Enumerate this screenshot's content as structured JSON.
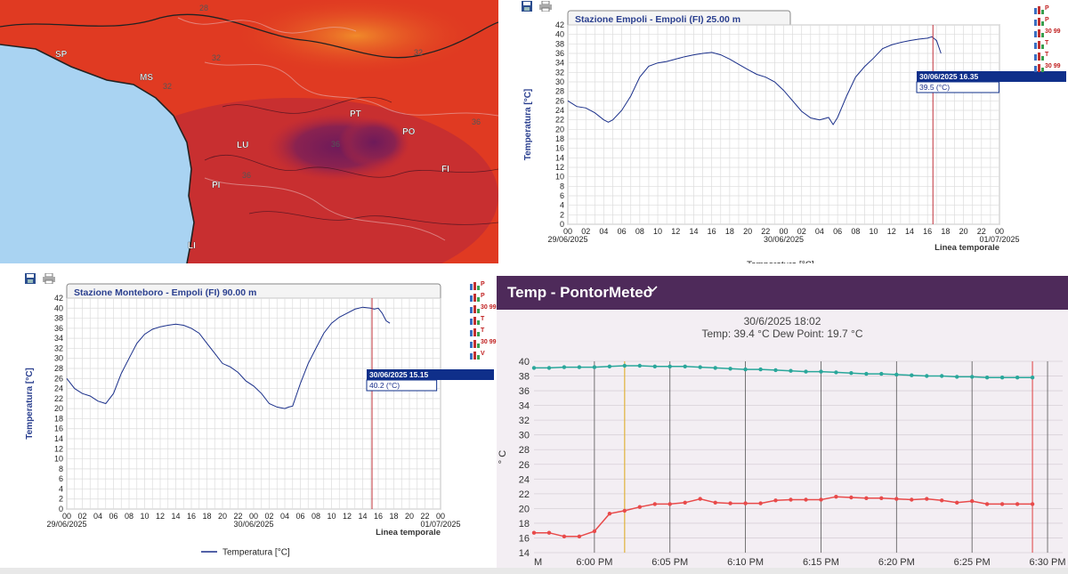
{
  "map": {
    "places": [
      "SP",
      "MS",
      "LU",
      "PT",
      "PO",
      "FI",
      "PI",
      "LI"
    ],
    "isotherm_labels": [
      "28",
      "32",
      "32",
      "32",
      "36",
      "36",
      "36"
    ],
    "colors": {
      "sea": "#a9d3f2",
      "hot": "#e03a22",
      "hotter": "#b8283a",
      "hottest": "#7a1f55",
      "warm": "#ee5a20"
    }
  },
  "chart1": {
    "title": "Stazione Empoli - Empoli (FI) 25.00 m",
    "ylabel": "Temperatura [°C]",
    "x_axis_title": "Linea temporale",
    "x_ticks": [
      "00",
      "02",
      "04",
      "06",
      "08",
      "10",
      "12",
      "14",
      "16",
      "18",
      "20",
      "22",
      "00",
      "02",
      "04",
      "06",
      "08",
      "10",
      "12",
      "14",
      "16",
      "18",
      "20",
      "22",
      "00"
    ],
    "date_labels": [
      "29/06/2025",
      "30/06/2025",
      "01/07/2025"
    ],
    "legend": "Temperatura [°C]",
    "tooltip_time": "30/06/2025 16.35",
    "tooltip_value": "39.5 (°C)",
    "side_badges": [
      "P",
      "P",
      "30 99",
      "T",
      "T",
      "30 99"
    ]
  },
  "chart2": {
    "title": "Stazione Monteboro - Empoli (FI) 90.00 m",
    "ylabel": "Temperatura [°C]",
    "x_axis_title": "Linea temporale",
    "x_ticks": [
      "00",
      "02",
      "04",
      "06",
      "08",
      "10",
      "12",
      "14",
      "16",
      "18",
      "20",
      "22",
      "00",
      "02",
      "04",
      "06",
      "08",
      "10",
      "12",
      "14",
      "16",
      "18",
      "20",
      "22",
      "00"
    ],
    "date_labels": [
      "29/06/2025",
      "30/06/2025",
      "01/07/2025"
    ],
    "legend": "Temperatura [°C]",
    "tooltip_time": "30/06/2025 15.15",
    "tooltip_value": "40.2 (°C)",
    "side_badges": [
      "P",
      "P",
      "30 99",
      "T",
      "T",
      "30 99",
      "V"
    ]
  },
  "pontor": {
    "title": "Temp - PontorMeteo",
    "timestamp": "30/6/2025 18:02",
    "readout": "Temp: 39.4 °C  Dew Point: 19.7 °C",
    "ylabel": "° C",
    "x_ticks": [
      "M",
      "6:00 PM",
      "6:05 PM",
      "6:10 PM",
      "6:15 PM",
      "6:20 PM",
      "6:25 PM",
      "6:30 PM"
    ],
    "y_ticks": [
      "14",
      "16",
      "18",
      "20",
      "22",
      "24",
      "26",
      "28",
      "30",
      "32",
      "34",
      "36",
      "38",
      "40"
    ]
  },
  "chart_data": [
    {
      "type": "line",
      "title": "Stazione Empoli - Empoli (FI) 25.00 m",
      "xlabel": "Linea temporale",
      "ylabel": "Temperatura [°C]",
      "ylim": [
        0,
        42
      ],
      "xlim_hours": [
        0,
        48
      ],
      "x_start": "29/06/2025 00:00",
      "series": [
        {
          "name": "Temperatura [°C]",
          "x_hours": [
            0,
            1,
            2,
            3,
            4,
            4.5,
            5,
            6,
            7,
            8,
            9,
            10,
            11,
            12,
            13,
            14,
            15,
            16,
            17,
            18,
            19,
            20,
            21,
            22,
            23,
            24,
            25,
            26,
            27,
            28,
            29,
            29.5,
            30,
            31,
            32,
            33,
            34,
            35,
            36,
            37,
            38,
            39,
            40,
            40.5,
            41,
            41.5
          ],
          "values": [
            26,
            24.8,
            24.5,
            23.5,
            22,
            21.5,
            22,
            24,
            27,
            31,
            33.3,
            34,
            34.3,
            34.8,
            35.3,
            35.7,
            36,
            36.2,
            35.7,
            34.8,
            33.7,
            32.6,
            31.6,
            31,
            30,
            28.2,
            26,
            23.8,
            22.4,
            22,
            22.5,
            21,
            22.5,
            27,
            31,
            33.2,
            35,
            37,
            37.8,
            38.3,
            38.7,
            39,
            39.2,
            39.5,
            38.7,
            36
          ]
        }
      ],
      "marker_hours": 40.6,
      "tooltip": {
        "time": "30/06/2025 16.35",
        "value": "39.5 (°C)"
      },
      "grid": true,
      "legend_position": "bottom"
    },
    {
      "type": "line",
      "title": "Stazione Monteboro - Empoli (FI) 90.00 m",
      "xlabel": "Linea temporale",
      "ylabel": "Temperatura [°C]",
      "ylim": [
        0,
        42
      ],
      "xlim_hours": [
        0,
        48
      ],
      "x_start": "29/06/2025 00:00",
      "series": [
        {
          "name": "Temperatura [°C]",
          "x_hours": [
            0,
            1,
            2,
            3,
            4,
            5,
            6,
            7,
            8,
            9,
            10,
            11,
            12,
            13,
            14,
            15,
            16,
            17,
            18,
            19,
            20,
            21,
            22,
            23,
            24,
            25,
            26,
            27,
            28,
            28.5,
            29,
            30,
            31,
            32,
            33,
            34,
            35,
            36,
            37,
            38,
            39,
            39.5,
            40,
            40.5,
            41,
            41.5
          ],
          "values": [
            26,
            24,
            23,
            22.5,
            21.5,
            21,
            23,
            27,
            30,
            33,
            34.8,
            35.8,
            36.3,
            36.6,
            36.8,
            36.6,
            36,
            35,
            33,
            31,
            29,
            28.3,
            27.2,
            25.5,
            24.5,
            23,
            21,
            20.3,
            20,
            20.3,
            20.5,
            25,
            29,
            32,
            35,
            37,
            38.2,
            39,
            39.8,
            40.2,
            40,
            39.8,
            40,
            39,
            37.5,
            37
          ]
        }
      ],
      "marker_hours": 39.2,
      "tooltip": {
        "time": "30/06/2025 15.15",
        "value": "40.2 (°C)"
      },
      "grid": true,
      "legend_position": "bottom"
    },
    {
      "type": "line",
      "title": "Temp - PontorMeteo",
      "ylabel": "° C",
      "ylim": [
        14,
        40
      ],
      "x_ticks": [
        "M",
        "6:00 PM",
        "6:05 PM",
        "6:10 PM",
        "6:15 PM",
        "6:20 PM",
        "6:25 PM",
        "6:30 PM"
      ],
      "x_minutes_range": [
        -4,
        31
      ],
      "series": [
        {
          "name": "Temp",
          "x_minutes": [
            -4,
            -3,
            -2,
            -1,
            0,
            1,
            2,
            3,
            4,
            5,
            6,
            7,
            8,
            9,
            10,
            11,
            12,
            13,
            14,
            15,
            16,
            17,
            18,
            19,
            20,
            21,
            22,
            23,
            24,
            25,
            26,
            27,
            28,
            29
          ],
          "values": [
            39.1,
            39.1,
            39.2,
            39.2,
            39.2,
            39.3,
            39.4,
            39.4,
            39.3,
            39.3,
            39.3,
            39.2,
            39.1,
            39.0,
            38.9,
            38.9,
            38.8,
            38.7,
            38.6,
            38.6,
            38.5,
            38.4,
            38.3,
            38.3,
            38.2,
            38.1,
            38.0,
            38.0,
            37.9,
            37.9,
            37.8,
            37.8,
            37.8,
            37.8
          ],
          "color": "#2aa79b"
        },
        {
          "name": "Dew Point",
          "x_minutes": [
            -4,
            -3,
            -2,
            -1,
            0,
            1,
            2,
            3,
            4,
            5,
            6,
            7,
            8,
            9,
            10,
            11,
            12,
            13,
            14,
            15,
            16,
            17,
            18,
            19,
            20,
            21,
            22,
            23,
            24,
            25,
            26,
            27,
            28,
            29
          ],
          "values": [
            16.7,
            16.7,
            16.2,
            16.2,
            16.9,
            19.3,
            19.7,
            20.2,
            20.6,
            20.6,
            20.8,
            21.3,
            20.8,
            20.7,
            20.7,
            20.7,
            21.1,
            21.2,
            21.2,
            21.2,
            21.6,
            21.5,
            21.4,
            21.4,
            21.3,
            21.2,
            21.3,
            21.1,
            20.8,
            21.0,
            20.6,
            20.6,
            20.6,
            20.6
          ],
          "color": "#e84a4a"
        }
      ],
      "cursor": {
        "time": "30/6/2025 18:02",
        "temp": 39.4,
        "dew_point": 19.7
      },
      "grid": true
    }
  ]
}
